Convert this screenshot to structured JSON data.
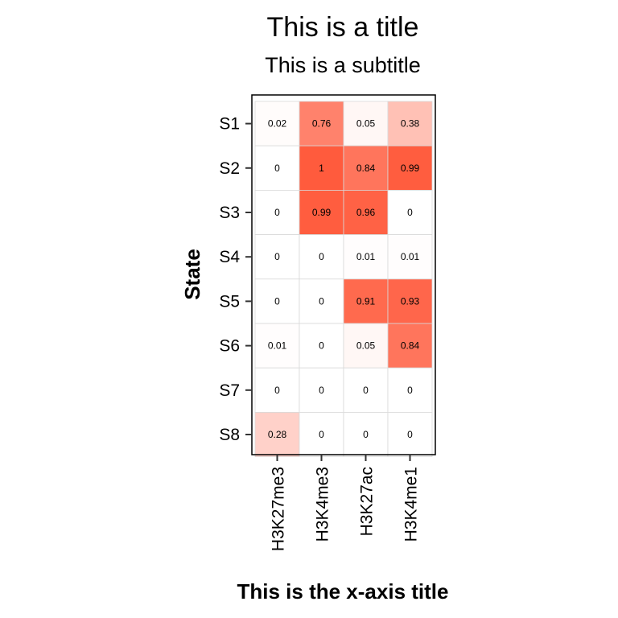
{
  "chart_data": {
    "type": "heatmap",
    "title": "This is a title",
    "subtitle": "This is a subtitle",
    "xlabel": "This is the x-axis title",
    "ylabel": "State",
    "x": [
      "H3K27me3",
      "H3K4me3",
      "H3K27ac",
      "H3K4me1"
    ],
    "y": [
      "S1",
      "S2",
      "S3",
      "S4",
      "S5",
      "S6",
      "S7",
      "S8"
    ],
    "values": [
      [
        0.02,
        0.76,
        0.05,
        0.38
      ],
      [
        0,
        1,
        0.84,
        0.99
      ],
      [
        0,
        0.99,
        0.96,
        0
      ],
      [
        0,
        0,
        0.01,
        0.01
      ],
      [
        0,
        0,
        0.91,
        0.93
      ],
      [
        0.01,
        0,
        0.05,
        0.84
      ],
      [
        0,
        0,
        0,
        0
      ],
      [
        0.28,
        0,
        0,
        0
      ]
    ],
    "value_labels": [
      [
        "0.02",
        "0.76",
        "0.05",
        "0.38"
      ],
      [
        "0",
        "1",
        "0.84",
        "0.99"
      ],
      [
        "0",
        "0.99",
        "0.96",
        "0"
      ],
      [
        "0",
        "0",
        "0.01",
        "0.01"
      ],
      [
        "0",
        "0",
        "0.91",
        "0.93"
      ],
      [
        "0.01",
        "0",
        "0.05",
        "0.84"
      ],
      [
        "0",
        "0",
        "0",
        "0"
      ],
      [
        "0.28",
        "0",
        "0",
        "0"
      ]
    ],
    "color_low": "#ffffff",
    "color_high": "#ff5b3d",
    "grid": true,
    "legend": "none"
  }
}
